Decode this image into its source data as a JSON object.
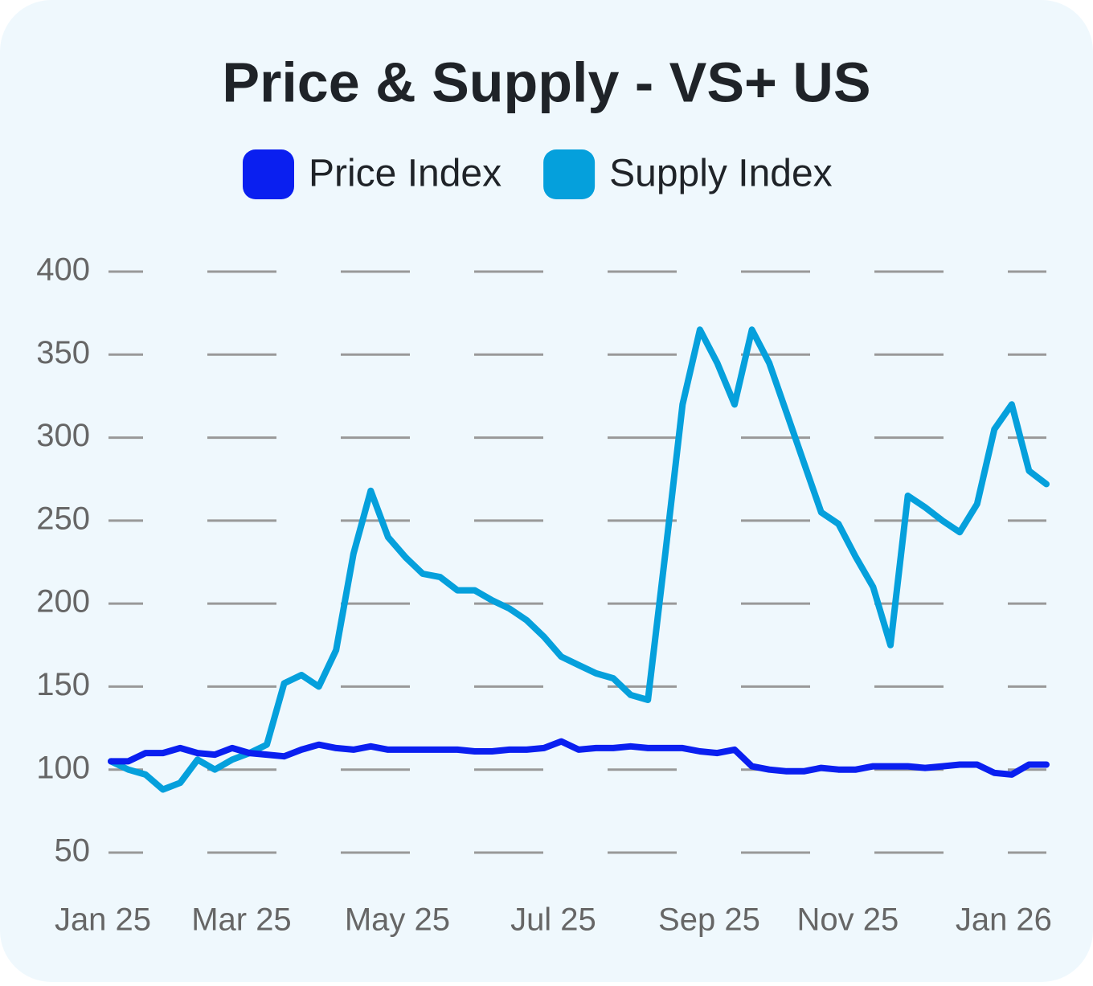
{
  "chart_data": {
    "type": "line",
    "title": "Price & Supply - VS+ US",
    "categories": [
      "Jan 25",
      null,
      null,
      null,
      null,
      null,
      null,
      null,
      "Mar 25",
      null,
      null,
      null,
      null,
      null,
      null,
      null,
      null,
      "May 25",
      null,
      null,
      null,
      null,
      null,
      null,
      null,
      null,
      "Jul 25",
      null,
      null,
      null,
      null,
      null,
      null,
      null,
      null,
      "Sep 25",
      null,
      null,
      null,
      null,
      null,
      null,
      null,
      "Nov 25",
      null,
      null,
      null,
      null,
      null,
      null,
      null,
      null,
      "Jan 26",
      null,
      null
    ],
    "series": [
      {
        "name": "Price Index",
        "color": "#0a1ff0",
        "values": [
          105,
          105,
          110,
          110,
          113,
          110,
          109,
          113,
          110,
          109,
          108,
          112,
          115,
          113,
          112,
          114,
          112,
          112,
          112,
          112,
          112,
          111,
          111,
          112,
          112,
          113,
          117,
          112,
          113,
          113,
          114,
          113,
          113,
          113,
          111,
          110,
          112,
          102,
          100,
          99,
          99,
          101,
          100,
          100,
          102,
          102,
          102,
          101,
          102,
          103,
          103,
          98,
          97,
          103,
          103
        ]
      },
      {
        "name": "Supply Index",
        "color": "#05a0dc",
        "values": [
          105,
          100,
          97,
          88,
          92,
          106,
          100,
          106,
          110,
          115,
          152,
          157,
          150,
          172,
          230,
          268,
          240,
          228,
          218,
          216,
          208,
          208,
          202,
          197,
          190,
          180,
          168,
          163,
          158,
          155,
          145,
          142,
          230,
          320,
          365,
          345,
          320,
          365,
          345,
          315,
          285,
          255,
          248,
          228,
          210,
          175,
          265,
          258,
          250,
          243,
          260,
          305,
          320,
          280,
          272
        ]
      }
    ],
    "ylim": [
      50,
      400
    ],
    "yticks": [
      50,
      100,
      150,
      200,
      250,
      300,
      350,
      400
    ],
    "grid": true
  }
}
